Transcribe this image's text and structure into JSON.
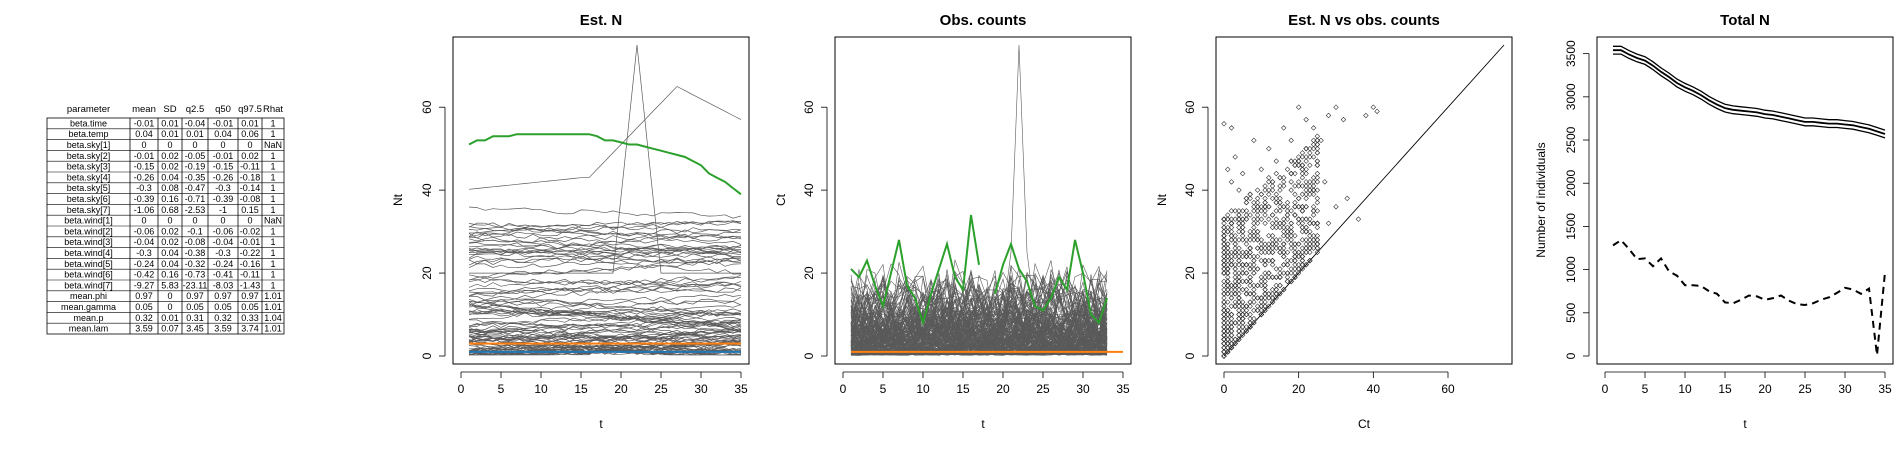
{
  "table": {
    "headers": [
      "parameter",
      "mean",
      "SD",
      "q2.5",
      "q50",
      "q97.5",
      "Rhat"
    ],
    "rows": [
      [
        "beta.time",
        "-0.01",
        "0.01",
        "-0.04",
        "-0.01",
        "0.01",
        "1"
      ],
      [
        "beta.temp",
        "0.04",
        "0.01",
        "0.01",
        "0.04",
        "0.06",
        "1"
      ],
      [
        "beta.sky[1]",
        "0",
        "0",
        "0",
        "0",
        "0",
        "NaN"
      ],
      [
        "beta.sky[2]",
        "-0.01",
        "0.02",
        "-0.05",
        "-0.01",
        "0.02",
        "1"
      ],
      [
        "beta.sky[3]",
        "-0.15",
        "0.02",
        "-0.19",
        "-0.15",
        "-0.11",
        "1"
      ],
      [
        "beta.sky[4]",
        "-0.26",
        "0.04",
        "-0.35",
        "-0.26",
        "-0.18",
        "1"
      ],
      [
        "beta.sky[5]",
        "-0.3",
        "0.08",
        "-0.47",
        "-0.3",
        "-0.14",
        "1"
      ],
      [
        "beta.sky[6]",
        "-0.39",
        "0.16",
        "-0.71",
        "-0.39",
        "-0.08",
        "1"
      ],
      [
        "beta.sky[7]",
        "-1.06",
        "0.68",
        "-2.53",
        "-1",
        "0.15",
        "1"
      ],
      [
        "beta.wind[1]",
        "0",
        "0",
        "0",
        "0",
        "0",
        "NaN"
      ],
      [
        "beta.wind[2]",
        "-0.06",
        "0.02",
        "-0.1",
        "-0.06",
        "-0.02",
        "1"
      ],
      [
        "beta.wind[3]",
        "-0.04",
        "0.02",
        "-0.08",
        "-0.04",
        "-0.01",
        "1"
      ],
      [
        "beta.wind[4]",
        "-0.3",
        "0.04",
        "-0.38",
        "-0.3",
        "-0.22",
        "1"
      ],
      [
        "beta.wind[5]",
        "-0.24",
        "0.04",
        "-0.32",
        "-0.24",
        "-0.16",
        "1"
      ],
      [
        "beta.wind[6]",
        "-0.42",
        "0.16",
        "-0.73",
        "-0.41",
        "-0.11",
        "1"
      ],
      [
        "beta.wind[7]",
        "-9.27",
        "5.83",
        "-23.11",
        "-8.03",
        "-1.43",
        "1"
      ],
      [
        "mean.phi",
        "0.97",
        "0",
        "0.97",
        "0.97",
        "0.97",
        "1.01"
      ],
      [
        "mean.gamma",
        "0.05",
        "0",
        "0.05",
        "0.05",
        "0.05",
        "1.01"
      ],
      [
        "mean.p",
        "0.32",
        "0.01",
        "0.31",
        "0.32",
        "0.33",
        "1.04"
      ],
      [
        "mean.lam",
        "3.59",
        "0.07",
        "3.45",
        "3.59",
        "3.74",
        "1.01"
      ]
    ]
  },
  "colors": {
    "gray_lines": "#5a5a5a",
    "green": "#2ca02c",
    "orange": "#ff7f0e",
    "blue": "#1f77b4",
    "black": "#000000"
  },
  "chart_data": [
    {
      "type": "line",
      "title": "Est. N",
      "xlabel": "t",
      "ylabel": "Nt",
      "xlim": [
        0,
        35
      ],
      "ylim": [
        0,
        75
      ],
      "xticks": [
        0,
        5,
        10,
        15,
        20,
        25,
        30,
        35
      ],
      "yticks": [
        0,
        20,
        40,
        60
      ],
      "background_series_count": 100,
      "series": [
        {
          "color": "green",
          "x": [
            1,
            2,
            3,
            4,
            5,
            6,
            7,
            8,
            9,
            10,
            11,
            12,
            13,
            14,
            15,
            16,
            17,
            18,
            19,
            20,
            21,
            22,
            23,
            24,
            25,
            26,
            27,
            28,
            29,
            30,
            31,
            32,
            33,
            34,
            35
          ],
          "values": [
            51,
            52,
            52,
            53,
            53,
            53,
            53.5,
            53.5,
            53.5,
            53.5,
            53.5,
            53.5,
            53.5,
            53.5,
            53.5,
            53.5,
            53,
            52,
            52,
            51.5,
            51,
            51,
            50.5,
            50,
            49.5,
            49,
            48.5,
            48,
            47,
            46,
            44,
            43,
            42,
            40.5,
            39
          ]
        },
        {
          "color": "orange",
          "x": [
            1,
            35
          ],
          "values": [
            3,
            3
          ]
        },
        {
          "color": "blue",
          "x": [
            1,
            35
          ],
          "values": [
            1,
            1
          ]
        }
      ]
    },
    {
      "type": "line",
      "title": "Obs. counts",
      "xlabel": "t",
      "ylabel": "Ct",
      "xlim": [
        0,
        35
      ],
      "ylim": [
        0,
        75
      ],
      "xticks": [
        0,
        5,
        10,
        15,
        20,
        25,
        30,
        35
      ],
      "yticks": [
        0,
        20,
        40,
        60
      ],
      "background_series_count": 200,
      "series": [
        {
          "color": "green",
          "x": [
            1,
            2,
            3,
            4,
            5,
            6,
            7,
            8,
            9,
            10,
            11,
            12,
            13,
            14,
            15,
            16,
            17,
            18,
            19,
            20,
            21,
            22,
            23,
            24,
            25,
            26,
            27,
            28,
            29,
            30,
            31,
            32,
            33
          ],
          "values": [
            21,
            19,
            23,
            17,
            12,
            20,
            28,
            17,
            14,
            8,
            15,
            21,
            27,
            19,
            16,
            34,
            22,
            null,
            15,
            22,
            27,
            21,
            18,
            12,
            11,
            14,
            19,
            16,
            28,
            20,
            10,
            8,
            14
          ]
        },
        {
          "color": "orange",
          "x": [
            1,
            35
          ],
          "values": [
            1,
            1
          ]
        }
      ]
    },
    {
      "type": "scatter",
      "title": "Est. N vs obs. counts",
      "xlabel": "Ct",
      "ylabel": "Nt",
      "xlim": [
        0,
        75
      ],
      "ylim": [
        0,
        75
      ],
      "xticks": [
        0,
        20,
        40,
        60
      ],
      "yticks": [
        0,
        20,
        40,
        60
      ],
      "reference_line": [
        [
          0,
          0
        ],
        [
          75,
          75
        ]
      ],
      "points": [
        [
          0,
          56
        ],
        [
          2,
          55
        ],
        [
          1,
          45
        ],
        [
          3,
          48
        ],
        [
          5,
          44
        ],
        [
          2,
          42
        ],
        [
          4,
          40
        ],
        [
          6,
          38
        ],
        [
          8,
          52
        ],
        [
          10,
          45
        ],
        [
          12,
          50
        ],
        [
          14,
          47
        ],
        [
          16,
          55
        ],
        [
          18,
          52
        ],
        [
          20,
          60
        ],
        [
          22,
          57
        ],
        [
          24,
          55
        ],
        [
          26,
          52
        ],
        [
          28,
          58
        ],
        [
          30,
          60
        ],
        [
          32,
          57
        ],
        [
          38,
          58
        ],
        [
          40,
          60
        ],
        [
          41,
          59
        ],
        [
          25,
          49
        ],
        [
          22,
          45
        ],
        [
          18,
          44
        ],
        [
          15,
          40
        ],
        [
          13,
          42
        ],
        [
          20,
          38
        ],
        [
          24,
          40
        ],
        [
          27,
          42
        ],
        [
          30,
          36
        ],
        [
          33,
          38
        ],
        [
          36,
          33
        ],
        [
          28,
          32
        ],
        [
          22,
          30
        ],
        [
          18,
          28
        ],
        [
          16,
          25
        ],
        [
          20,
          22
        ],
        [
          25,
          26
        ],
        [
          14,
          19
        ],
        [
          12,
          15
        ],
        [
          9,
          30
        ],
        [
          7,
          34
        ],
        [
          5,
          28
        ],
        [
          3,
          25
        ],
        [
          1,
          18
        ],
        [
          11,
          36
        ],
        [
          17,
          33
        ]
      ]
    },
    {
      "type": "line",
      "title": "Total N",
      "xlabel": "t",
      "ylabel": "Number of individuals",
      "xlim": [
        0,
        35
      ],
      "ylim": [
        0,
        3600
      ],
      "xticks": [
        0,
        5,
        10,
        15,
        20,
        25,
        30,
        35
      ],
      "yticks": [
        0,
        500,
        1000,
        1500,
        2000,
        2500,
        3000,
        3500
      ],
      "series": [
        {
          "style": "solid",
          "x": [
            1,
            2,
            3,
            4,
            5,
            6,
            7,
            8,
            9,
            10,
            11,
            12,
            13,
            14,
            15,
            16,
            17,
            18,
            19,
            20,
            21,
            22,
            23,
            24,
            25,
            26,
            27,
            28,
            29,
            30,
            31,
            32,
            33,
            34,
            35
          ],
          "values": [
            3540,
            3540,
            3490,
            3450,
            3420,
            3360,
            3290,
            3230,
            3160,
            3110,
            3070,
            3020,
            2960,
            2910,
            2870,
            2850,
            2840,
            2830,
            2820,
            2800,
            2790,
            2770,
            2750,
            2730,
            2710,
            2710,
            2700,
            2690,
            2690,
            2680,
            2670,
            2650,
            2630,
            2600,
            2570
          ],
          "band": 45
        },
        {
          "style": "dashed",
          "x": [
            1,
            2,
            3,
            4,
            5,
            6,
            7,
            8,
            9,
            10,
            11,
            12,
            13,
            14,
            15,
            16,
            17,
            18,
            19,
            20,
            21,
            22,
            23,
            24,
            25,
            26,
            27,
            28,
            29,
            30,
            31,
            32,
            33,
            34,
            35
          ],
          "values": [
            1280,
            1340,
            1240,
            1120,
            1130,
            1040,
            1130,
            980,
            930,
            820,
            820,
            810,
            750,
            720,
            620,
            610,
            650,
            700,
            690,
            650,
            670,
            700,
            640,
            600,
            590,
            610,
            650,
            680,
            730,
            790,
            770,
            720,
            780,
            10,
            970
          ]
        }
      ]
    }
  ]
}
